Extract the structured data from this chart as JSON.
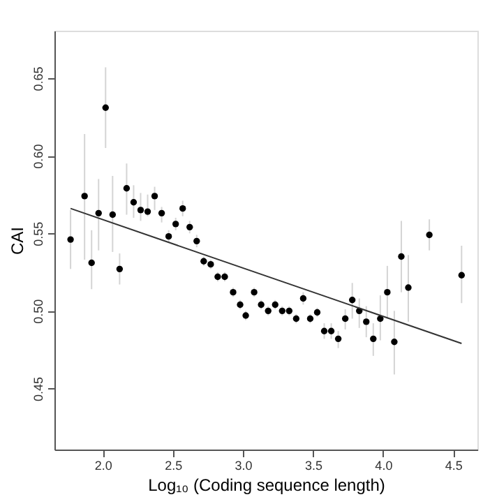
{
  "chart_data": {
    "type": "scatter",
    "xlabel": "Log₁₀ (Coding sequence length)",
    "ylabel": "CAI",
    "xlim": [
      1.655,
      4.673
    ],
    "ylim": [
      0.4106,
      0.6806
    ],
    "xticks": [
      {
        "value": 2,
        "label": "2.0"
      },
      2.5,
      {
        "value": 3,
        "label": "3.0"
      },
      3.5,
      {
        "value": 4,
        "label": "4.0"
      },
      4.5
    ],
    "yticks": [
      0.45,
      {
        "value": 0.5,
        "label": "0.50"
      },
      0.55,
      {
        "value": 0.6,
        "label": "0.60"
      },
      0.65
    ],
    "grid": false,
    "series": [
      {
        "color": "#000000",
        "marker": "circle",
        "x": [
          1.77,
          1.87,
          1.92,
          1.97,
          2.02,
          2.07,
          2.12,
          2.17,
          2.22,
          2.27,
          2.32,
          2.37,
          2.42,
          2.47,
          2.52,
          2.57,
          2.62,
          2.67,
          2.72,
          2.77,
          2.82,
          2.87,
          2.93,
          2.98,
          3.02,
          3.08,
          3.13,
          3.18,
          3.23,
          3.28,
          3.33,
          3.38,
          3.43,
          3.48,
          3.53,
          3.58,
          3.63,
          3.68,
          3.73,
          3.78,
          3.83,
          3.88,
          3.93,
          3.98,
          4.03,
          4.08,
          4.13,
          4.18,
          4.33,
          4.56
        ],
        "values": [
          0.546,
          0.574,
          0.531,
          0.563,
          0.631,
          0.562,
          0.527,
          0.579,
          0.57,
          0.565,
          0.564,
          0.574,
          0.563,
          0.548,
          0.556,
          0.566,
          0.554,
          0.545,
          0.532,
          0.53,
          0.522,
          0.522,
          0.512,
          0.504,
          0.497,
          0.512,
          0.504,
          0.5,
          0.504,
          0.5,
          0.5,
          0.495,
          0.508,
          0.495,
          0.499,
          0.487,
          0.487,
          0.482,
          0.495,
          0.507,
          0.5,
          0.493,
          0.482,
          0.495,
          0.512,
          0.48,
          0.535,
          0.515,
          0.549,
          0.523
        ],
        "errors": [
          [
            0.527,
            0.565
          ],
          [
            0.533,
            0.614
          ],
          [
            0.514,
            0.552
          ],
          [
            0.539,
            0.585
          ],
          [
            0.605,
            0.657
          ],
          [
            0.538,
            0.587
          ],
          [
            0.517,
            0.537
          ],
          [
            0.562,
            0.595
          ],
          [
            0.56,
            0.581
          ],
          [
            0.558,
            0.576
          ],
          [
            0.561,
            0.575
          ],
          [
            0.565,
            0.58
          ],
          [
            0.557,
            0.567
          ],
          0.004,
          0.004,
          [
            0.561,
            0.571
          ],
          0.004,
          0.004,
          0.003,
          0.003,
          0.003,
          0.003,
          0.003,
          0.003,
          0.003,
          0.003,
          0.003,
          0.003,
          0.003,
          0.003,
          0.003,
          0.003,
          0.004,
          0.003,
          0.003,
          0.005,
          0.005,
          [
            0.476,
            0.487
          ],
          [
            0.488,
            0.501
          ],
          [
            0.495,
            0.518
          ],
          [
            0.489,
            0.508
          ],
          [
            0.483,
            0.503
          ],
          [
            0.471,
            0.492
          ],
          [
            0.481,
            0.51
          ],
          [
            0.495,
            0.529
          ],
          [
            0.459,
            0.5
          ],
          [
            0.512,
            0.558
          ],
          [
            0.493,
            0.536
          ],
          [
            0.539,
            0.559
          ],
          [
            0.505,
            0.542
          ]
        ]
      },
      {
        "type": "line",
        "color": "#333333",
        "line_style": "solid",
        "marker": "none",
        "x": [
          1.77,
          4.56
        ],
        "values": [
          0.566,
          0.479
        ]
      }
    ]
  }
}
